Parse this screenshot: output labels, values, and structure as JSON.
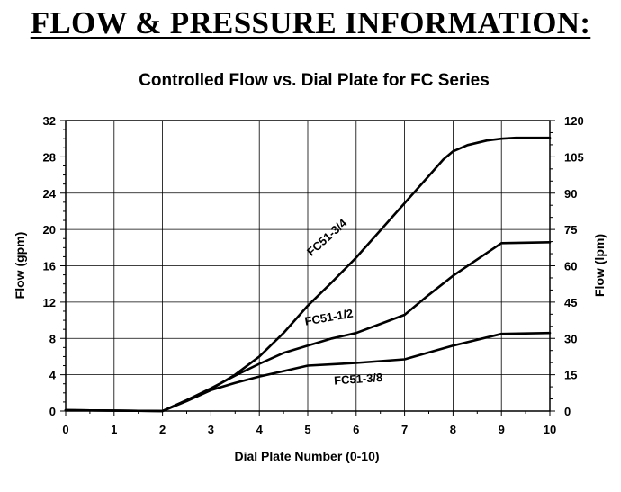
{
  "heading": "FLOW & PRESSURE INFORMATION:",
  "chart_data": {
    "type": "line",
    "title": "Controlled Flow vs. Dial Plate for FC Series",
    "xlabel": "Dial Plate Number (0-10)",
    "ylabel": "Flow (gpm)",
    "y2label": "Flow (lpm)",
    "xlim": [
      0,
      10
    ],
    "ylim": [
      0,
      32
    ],
    "y2lim": [
      0,
      120
    ],
    "x_ticks": [
      "0",
      "1",
      "2",
      "3",
      "4",
      "5",
      "6",
      "7",
      "8",
      "9",
      "10"
    ],
    "y_ticks": [
      "0",
      "4",
      "8",
      "12",
      "16",
      "20",
      "24",
      "28",
      "32"
    ],
    "y2_ticks": [
      "0",
      "15",
      "30",
      "45",
      "60",
      "75",
      "90",
      "105",
      "120"
    ],
    "grid": true,
    "series": [
      {
        "name": "FC51-3/4",
        "points": [
          [
            0,
            0.1
          ],
          [
            2,
            0
          ],
          [
            2.5,
            1.2
          ],
          [
            3,
            2.4
          ],
          [
            3.5,
            4
          ],
          [
            4,
            6
          ],
          [
            4.5,
            8.6
          ],
          [
            5,
            11.6
          ],
          [
            5.5,
            14.2
          ],
          [
            6,
            16.9
          ],
          [
            6.5,
            19.9
          ],
          [
            7,
            22.9
          ],
          [
            7.5,
            25.9
          ],
          [
            7.8,
            27.7
          ],
          [
            8,
            28.6
          ],
          [
            8.3,
            29.3
          ],
          [
            8.7,
            29.8
          ],
          [
            9,
            30
          ],
          [
            9.3,
            30.1
          ],
          [
            10,
            30.1
          ]
        ]
      },
      {
        "name": "FC51-1/2",
        "points": [
          [
            0,
            0.1
          ],
          [
            2,
            0
          ],
          [
            2.5,
            1.2
          ],
          [
            3,
            2.5
          ],
          [
            3.5,
            3.9
          ],
          [
            4,
            5.2
          ],
          [
            4.5,
            6.4
          ],
          [
            5,
            7.2
          ],
          [
            5.5,
            8
          ],
          [
            6,
            8.6
          ],
          [
            6.5,
            9.6
          ],
          [
            7,
            10.6
          ],
          [
            7.5,
            12.8
          ],
          [
            8,
            14.9
          ],
          [
            8.5,
            16.7
          ],
          [
            9,
            18.5
          ],
          [
            10,
            18.6
          ]
        ]
      },
      {
        "name": "FC51-3/8",
        "points": [
          [
            0,
            0.1
          ],
          [
            2,
            0
          ],
          [
            2.5,
            1.1
          ],
          [
            3,
            2.3
          ],
          [
            3.5,
            3.1
          ],
          [
            4,
            3.8
          ],
          [
            4.5,
            4.4
          ],
          [
            5,
            5
          ],
          [
            6,
            5.3
          ],
          [
            7,
            5.7
          ],
          [
            8,
            7.2
          ],
          [
            9,
            8.5
          ],
          [
            10,
            8.6
          ]
        ]
      }
    ]
  }
}
